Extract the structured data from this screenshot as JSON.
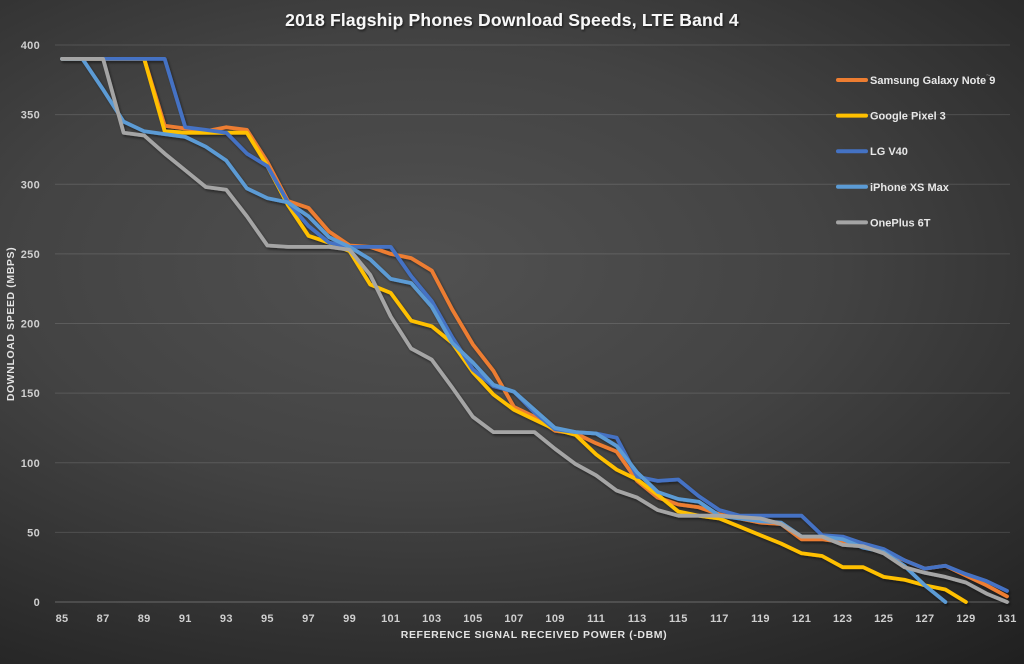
{
  "title": "2018 Flagship Phones Download Speeds, LTE Band 4",
  "legend": {
    "position": "right",
    "note_mark": "~",
    "items": [
      "Samsung Galaxy Note 9",
      "Google Pixel 3",
      "LG V40",
      "iPhone XS Max",
      "OnePlus 6T"
    ]
  },
  "chart_data": {
    "type": "line",
    "title": "2018 Flagship Phones Download Speeds, LTE Band 4",
    "xlabel": "REFERENCE SIGNAL RECEIVED POWER (-DBM)",
    "ylabel": "DOWNLOAD SPEED (MBPS)",
    "xlim": [
      85,
      131
    ],
    "ylim": [
      0,
      400
    ],
    "x_ticks": [
      85,
      87,
      89,
      91,
      93,
      95,
      97,
      99,
      101,
      103,
      105,
      107,
      109,
      111,
      113,
      115,
      117,
      119,
      121,
      123,
      125,
      127,
      129,
      131
    ],
    "y_ticks": [
      0,
      50,
      100,
      150,
      200,
      250,
      300,
      350,
      400
    ],
    "grid": "horizontal",
    "legend_position": "right",
    "x_start": 85,
    "x_step": 1,
    "series": [
      {
        "name": "Samsung Galaxy Note 9",
        "color": "#ED7D31",
        "values": [
          390,
          390,
          390,
          390,
          390,
          342,
          340,
          338,
          341,
          339,
          316,
          288,
          283,
          266,
          256,
          255,
          250,
          247,
          238,
          210,
          185,
          166,
          140,
          133,
          123,
          121,
          114,
          108,
          87,
          75,
          70,
          68,
          63,
          60,
          57,
          56,
          45,
          45,
          43,
          41,
          36,
          30,
          24,
          26,
          19,
          12,
          4
        ]
      },
      {
        "name": "Google Pixel 3",
        "color": "#FFC000",
        "values": [
          390,
          390,
          390,
          390,
          390,
          338,
          337,
          337,
          337,
          337,
          313,
          285,
          263,
          258,
          252,
          228,
          222,
          202,
          198,
          186,
          165,
          149,
          138,
          131,
          124,
          120,
          106,
          95,
          88,
          77,
          65,
          62,
          60,
          54,
          48,
          42,
          35,
          33,
          25,
          25,
          18,
          16,
          12,
          9,
          0
        ]
      },
      {
        "name": "LG V40",
        "color": "#4472C4",
        "values": [
          390,
          390,
          390,
          390,
          390,
          390,
          341,
          339,
          337,
          322,
          313,
          287,
          270,
          258,
          255,
          255,
          255,
          234,
          216,
          190,
          167,
          155,
          151,
          136,
          124,
          122,
          121,
          118,
          90,
          87,
          88,
          76,
          66,
          62,
          62,
          62,
          62,
          48,
          47,
          42,
          38,
          30,
          24,
          26,
          20,
          15,
          8
        ]
      },
      {
        "name": "iPhone XS Max",
        "color": "#5B9BD5",
        "values": [
          390,
          390,
          368,
          345,
          338,
          336,
          334,
          327,
          317,
          297,
          290,
          287,
          277,
          262,
          255,
          246,
          232,
          229,
          212,
          186,
          172,
          156,
          151,
          138,
          125,
          122,
          121,
          112,
          93,
          79,
          74,
          72,
          62,
          60,
          58,
          57,
          47,
          47,
          45,
          39,
          36,
          26,
          12,
          0
        ]
      },
      {
        "name": "OnePlus 6T",
        "color": "#A5A5A5",
        "values": [
          390,
          390,
          390,
          337,
          335,
          322,
          310,
          298,
          296,
          277,
          256,
          255,
          255,
          255,
          253,
          235,
          205,
          182,
          174,
          154,
          133,
          122,
          122,
          122,
          110,
          99,
          91,
          80,
          75,
          66,
          62,
          62,
          62,
          61,
          60,
          56,
          47,
          47,
          41,
          40,
          35,
          25,
          21,
          18,
          14,
          6,
          0
        ]
      }
    ]
  }
}
